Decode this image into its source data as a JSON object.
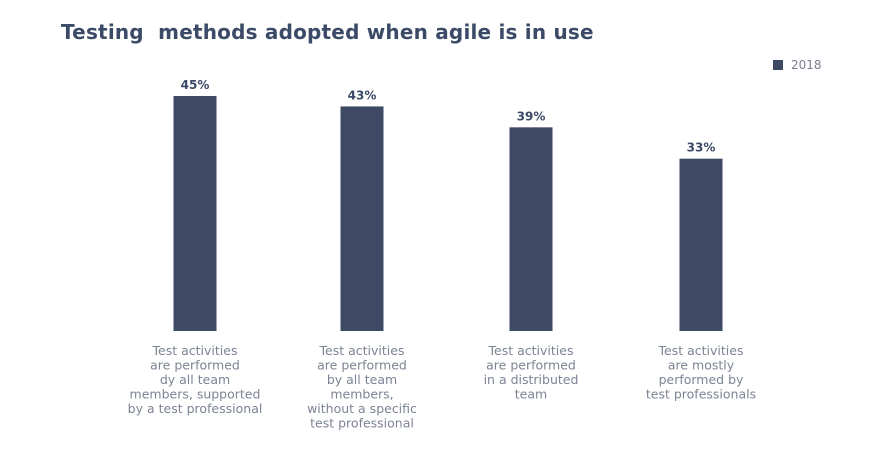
{
  "chart_data": {
    "type": "bar",
    "title": "Testing  methods adopted when agile is in use",
    "categories": [
      "Test activities are performed dy all team members, supported by a test professional",
      "Test activities are performed by all team members, without a specific test professional",
      "Test activities are performed in a distributed team",
      "Test activities are mostly performed by test professionals"
    ],
    "category_lines": [
      [
        "Test activities",
        "are performed",
        "dy all team",
        "members, supported",
        "by a test professional"
      ],
      [
        "Test activities",
        "are performed",
        "by all team",
        "members,",
        "without a specific",
        "test professional"
      ],
      [
        "Test activities",
        "are performed",
        "in a distributed",
        "team"
      ],
      [
        "Test activities",
        "are mostly",
        "performed by",
        "test professionals"
      ]
    ],
    "series": [
      {
        "name": "2018",
        "values": [
          45,
          43,
          39,
          33
        ],
        "labels": [
          "45%",
          "43%",
          "39%",
          "33%"
        ],
        "color": "#3e4a63"
      }
    ],
    "ylim": [
      0,
      45
    ],
    "xlabel": "",
    "ylabel": "",
    "grid": false,
    "legend_position": "top-right"
  }
}
